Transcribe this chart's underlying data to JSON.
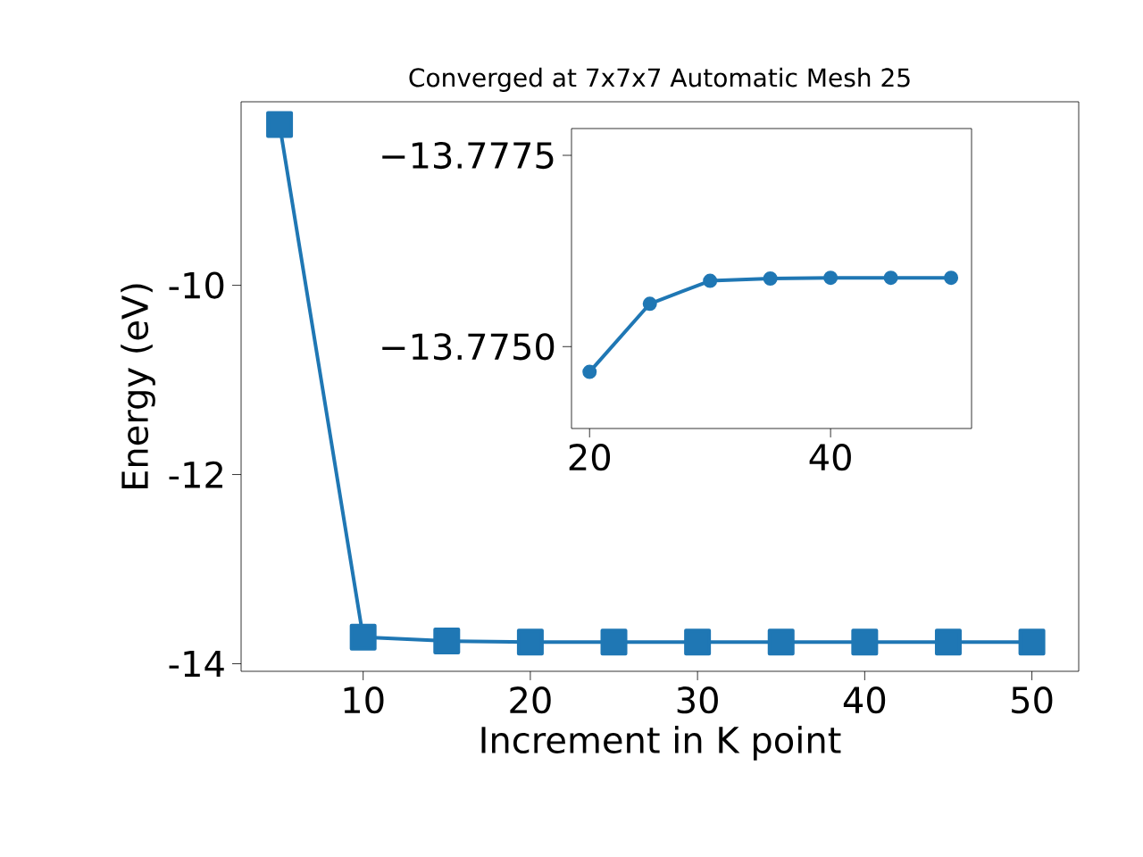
{
  "chart_data": [
    {
      "type": "line",
      "title": "Converged at 7x7x7 Automatic Mesh 25",
      "xlabel": "Increment in K point",
      "ylabel": "Energy (eV)",
      "x": [
        5,
        10,
        15,
        20,
        25,
        30,
        35,
        40,
        45,
        50
      ],
      "series": [
        {
          "color": "#1f77b4",
          "values": [
            -8.3,
            -13.72,
            -13.76,
            -13.77,
            -13.77,
            -13.77,
            -13.77,
            -13.77,
            -13.77,
            -13.77
          ]
        }
      ],
      "xlim": [
        2.7,
        52.8
      ],
      "ylim": [
        -14.08,
        -8.06
      ],
      "xticks": [
        10,
        20,
        30,
        40,
        50
      ],
      "yticks": [
        -14,
        -12,
        -10
      ],
      "marker": "square",
      "line_style": "solid"
    },
    {
      "type": "line",
      "x": [
        20,
        25,
        30,
        35,
        40,
        45,
        50
      ],
      "series": [
        {
          "color": "#1f77b4",
          "values": [
            -13.77467,
            -13.77556,
            -13.77586,
            -13.77589,
            -13.7759,
            -13.7759,
            -13.7759
          ]
        }
      ],
      "xlim": [
        18.5,
        51.7
      ],
      "ylim": [
        -13.77393,
        -13.77785
      ],
      "xticks": [
        20,
        40
      ],
      "yticks": [
        {
          "value": -13.775,
          "label": "−13.7750"
        },
        {
          "value": -13.7775,
          "label": "−13.7775"
        }
      ],
      "marker": "circle",
      "line_style": "solid"
    }
  ]
}
